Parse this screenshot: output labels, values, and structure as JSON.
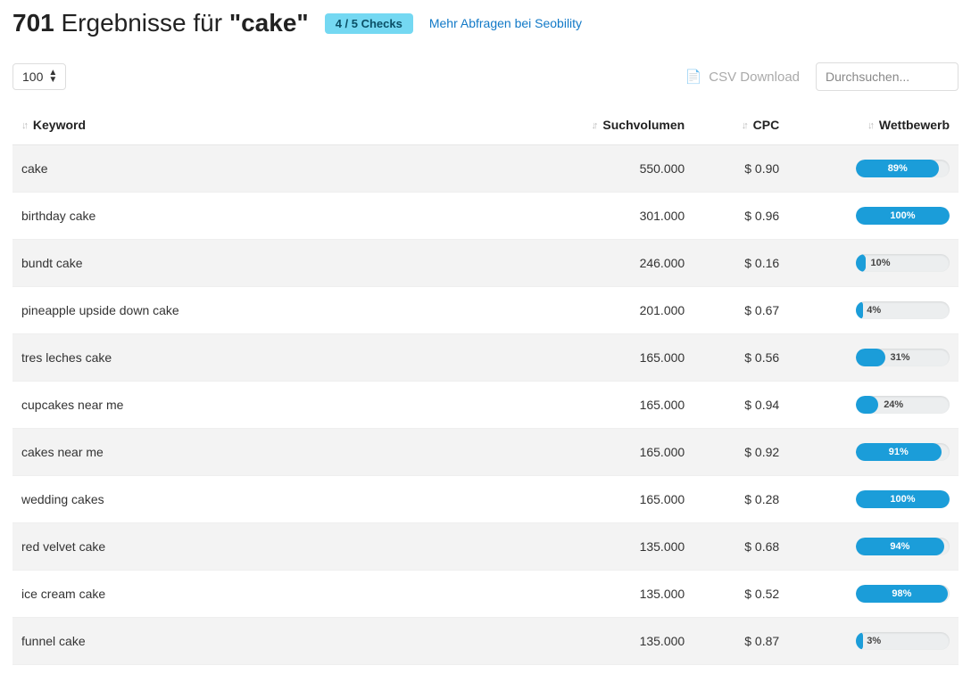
{
  "header": {
    "count": "701",
    "results_prefix": "Ergebnisse für",
    "term": "cake",
    "checks_label": "4 / 5 Checks",
    "more_link": "Mehr Abfragen bei Seobility"
  },
  "controls": {
    "page_size": "100",
    "csv_label": "CSV Download",
    "search_placeholder": "Durchsuchen..."
  },
  "columns": {
    "keyword": "Keyword",
    "volume": "Suchvolumen",
    "cpc": "CPC",
    "competition": "Wettbewerb"
  },
  "colors": {
    "bar_fill": "#1b9dd9",
    "bar_track": "#eceeef",
    "badge_bg": "#74d8f2",
    "link": "#1179c7"
  },
  "rows": [
    {
      "keyword": "cake",
      "volume": "550.000",
      "cpc": "$ 0.90",
      "competition_pct": 89,
      "competition_label": "89%"
    },
    {
      "keyword": "birthday cake",
      "volume": "301.000",
      "cpc": "$ 0.96",
      "competition_pct": 100,
      "competition_label": "100%"
    },
    {
      "keyword": "bundt cake",
      "volume": "246.000",
      "cpc": "$ 0.16",
      "competition_pct": 10,
      "competition_label": "10%"
    },
    {
      "keyword": "pineapple upside down cake",
      "volume": "201.000",
      "cpc": "$ 0.67",
      "competition_pct": 4,
      "competition_label": "4%"
    },
    {
      "keyword": "tres leches cake",
      "volume": "165.000",
      "cpc": "$ 0.56",
      "competition_pct": 31,
      "competition_label": "31%"
    },
    {
      "keyword": "cupcakes near me",
      "volume": "165.000",
      "cpc": "$ 0.94",
      "competition_pct": 24,
      "competition_label": "24%"
    },
    {
      "keyword": "cakes near me",
      "volume": "165.000",
      "cpc": "$ 0.92",
      "competition_pct": 91,
      "competition_label": "91%"
    },
    {
      "keyword": "wedding cakes",
      "volume": "165.000",
      "cpc": "$ 0.28",
      "competition_pct": 100,
      "competition_label": "100%"
    },
    {
      "keyword": "red velvet cake",
      "volume": "135.000",
      "cpc": "$ 0.68",
      "competition_pct": 94,
      "competition_label": "94%"
    },
    {
      "keyword": "ice cream cake",
      "volume": "135.000",
      "cpc": "$ 0.52",
      "competition_pct": 98,
      "competition_label": "98%"
    },
    {
      "keyword": "funnel cake",
      "volume": "135.000",
      "cpc": "$ 0.87",
      "competition_pct": 3,
      "competition_label": "3%"
    }
  ]
}
